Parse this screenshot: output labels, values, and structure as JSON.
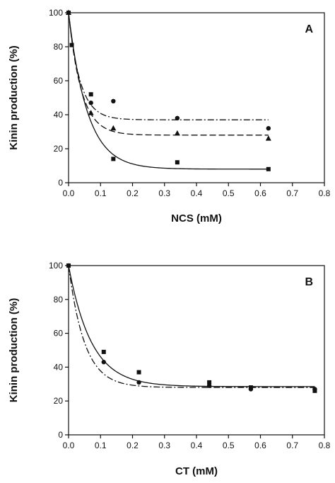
{
  "chart_data": [
    {
      "type": "scatter",
      "panel_label": "A",
      "xlabel": "NCS (mM)",
      "ylabel": "Kinin production (%)",
      "xlim": [
        0,
        0.8
      ],
      "ylim": [
        0,
        100
      ],
      "xticks": [
        "0.0",
        "0.1",
        "0.2",
        "0.3",
        "0.4",
        "0.5",
        "0.6",
        "0.7",
        "0.8"
      ],
      "yticks": [
        "0",
        "20",
        "40",
        "60",
        "80",
        "100"
      ],
      "grid": false,
      "series": [
        {
          "marker": "square",
          "line": "solid",
          "points": [
            [
              0.0,
              100
            ],
            [
              0.01,
              81
            ],
            [
              0.07,
              52
            ],
            [
              0.14,
              14
            ],
            [
              0.34,
              12
            ],
            [
              0.625,
              8
            ]
          ],
          "fit": {
            "plateau": 8,
            "span": 92,
            "k": 17
          }
        },
        {
          "marker": "triangle",
          "line": "dashed",
          "points": [
            [
              0.0,
              100
            ],
            [
              0.07,
              41
            ],
            [
              0.14,
              32
            ],
            [
              0.34,
              29
            ],
            [
              0.625,
              26
            ]
          ],
          "fit": {
            "plateau": 28,
            "span": 72,
            "k": 25
          }
        },
        {
          "marker": "circle",
          "line": "dash-dot",
          "points": [
            [
              0.0,
              100
            ],
            [
              0.07,
              47
            ],
            [
              0.14,
              48
            ],
            [
              0.34,
              38
            ],
            [
              0.625,
              32
            ]
          ],
          "fit": {
            "plateau": 37,
            "span": 63,
            "k": 28
          }
        }
      ]
    },
    {
      "type": "scatter",
      "panel_label": "B",
      "xlabel": "CT (mM)",
      "ylabel": "Kinin production (%)",
      "xlim": [
        0,
        0.8
      ],
      "ylim": [
        0,
        100
      ],
      "xticks": [
        "0.0",
        "0.1",
        "0.2",
        "0.3",
        "0.4",
        "0.5",
        "0.6",
        "0.7",
        "0.8"
      ],
      "yticks": [
        "0",
        "20",
        "40",
        "60",
        "80",
        "100"
      ],
      "grid": false,
      "series": [
        {
          "marker": "square",
          "line": "solid",
          "points": [
            [
              0.0,
              100
            ],
            [
              0.11,
              49
            ],
            [
              0.22,
              37
            ],
            [
              0.44,
              31
            ],
            [
              0.57,
              28
            ],
            [
              0.77,
              26
            ]
          ],
          "fit": {
            "plateau": 28.5,
            "span": 71.5,
            "k": 14
          }
        },
        {
          "marker": "circle",
          "line": "dash-dot",
          "points": [
            [
              0.0,
              100
            ],
            [
              0.11,
              43
            ],
            [
              0.22,
              31
            ],
            [
              0.44,
              29
            ],
            [
              0.57,
              27
            ],
            [
              0.77,
              27
            ]
          ],
          "fit": {
            "plateau": 28,
            "span": 72,
            "k": 20
          }
        }
      ]
    }
  ]
}
